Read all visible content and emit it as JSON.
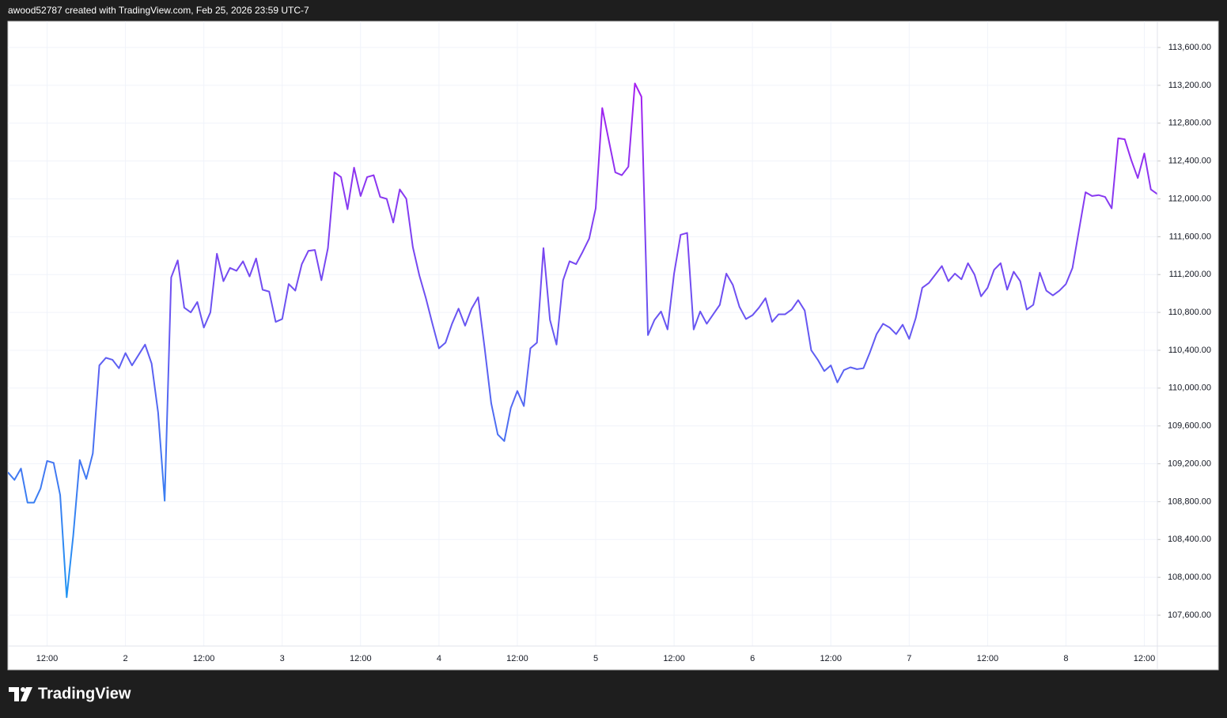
{
  "header": {
    "title": "awood52787 created with TradingView.com, Feb 25, 2026 23:59 UTC-7"
  },
  "footer": {
    "logo": "TradingView"
  },
  "chart_data": {
    "type": "line",
    "x": [
      6,
      7,
      8,
      9,
      10,
      11,
      12,
      13,
      14,
      15,
      16,
      17,
      18,
      19,
      20,
      21,
      22,
      23,
      24,
      25,
      26,
      27,
      28,
      29,
      30,
      31,
      32,
      33,
      34,
      35,
      36,
      37,
      38,
      39,
      40,
      41,
      42,
      43,
      44,
      45,
      46,
      47,
      48,
      49,
      50,
      51,
      52,
      53,
      54,
      55,
      56,
      57,
      58,
      59,
      60,
      61,
      62,
      63,
      64,
      65,
      66,
      67,
      68,
      69,
      70,
      71,
      72,
      73,
      74,
      75,
      76,
      77,
      78,
      79,
      80,
      81,
      82,
      83,
      84,
      85,
      86,
      87,
      88,
      89,
      90,
      91,
      92,
      93,
      94,
      95,
      96,
      97,
      98,
      99,
      100,
      101,
      102,
      103,
      104,
      105,
      106,
      107,
      108,
      109,
      110,
      111,
      112,
      113,
      114,
      115,
      116,
      117,
      118,
      119,
      120,
      121,
      122,
      123,
      124,
      125,
      126,
      127,
      128,
      129,
      130,
      131,
      132,
      133,
      134,
      135,
      136,
      137,
      138,
      139,
      140,
      141,
      142,
      143,
      144,
      145,
      146,
      147,
      148,
      149,
      150,
      151,
      152,
      153,
      154,
      155,
      156,
      157,
      158,
      159,
      160,
      161,
      162,
      163,
      164,
      165,
      166,
      167,
      168,
      169,
      170,
      171,
      172,
      173,
      174,
      175,
      176,
      177,
      178,
      179,
      180,
      181,
      182
    ],
    "series": [
      {
        "gradient": [
          "#a51ff0",
          "#2196f3"
        ],
        "values": [
          109110,
          109030,
          109150,
          108790,
          108790,
          108940,
          109230,
          109210,
          108870,
          107790,
          108440,
          109240,
          109040,
          109310,
          110240,
          110320,
          110300,
          110210,
          110370,
          110240,
          110350,
          110460,
          110260,
          109740,
          108810,
          111170,
          111350,
          110850,
          110800,
          110910,
          110640,
          110800,
          111420,
          111130,
          111270,
          111240,
          111340,
          111180,
          111370,
          111040,
          111020,
          110700,
          110730,
          111100,
          111030,
          111310,
          111450,
          111460,
          111140,
          111480,
          112280,
          112230,
          111890,
          112330,
          112030,
          112230,
          112250,
          112020,
          112000,
          111750,
          112100,
          112000,
          111490,
          111190,
          110950,
          110680,
          110420,
          110480,
          110680,
          110840,
          110660,
          110840,
          110960,
          110420,
          109840,
          109510,
          109440,
          109790,
          109970,
          109810,
          110420,
          110480,
          111480,
          110720,
          110460,
          111140,
          111340,
          111310,
          111440,
          111580,
          111900,
          112960,
          112620,
          112280,
          112250,
          112340,
          113220,
          113080,
          110560,
          110720,
          110810,
          110620,
          111210,
          111620,
          111640,
          110620,
          110810,
          110680,
          110780,
          110880,
          111210,
          111090,
          110860,
          110730,
          110770,
          110850,
          110950,
          110700,
          110780,
          110780,
          110830,
          110930,
          110820,
          110400,
          110300,
          110180,
          110240,
          110060,
          110190,
          110220,
          110200,
          110210,
          110380,
          110570,
          110680,
          110640,
          110570,
          110670,
          110520,
          110740,
          111060,
          111110,
          111200,
          111290,
          111130,
          111210,
          111150,
          111320,
          111200,
          110970,
          111060,
          111250,
          111320,
          111040,
          111230,
          111130,
          110830,
          110880,
          111220,
          111030,
          110980,
          111030,
          111100,
          111270,
          111670,
          112070,
          112030,
          112040,
          112020,
          111900,
          112640,
          112630,
          112410,
          112220,
          112480,
          112100,
          112050
        ]
      }
    ],
    "xlim": [
      6,
      182
    ],
    "xticks": [
      {
        "value": 12,
        "label": "12:00"
      },
      {
        "value": 24,
        "label": "2"
      },
      {
        "value": 36,
        "label": "12:00"
      },
      {
        "value": 48,
        "label": "3"
      },
      {
        "value": 60,
        "label": "12:00"
      },
      {
        "value": 72,
        "label": "4"
      },
      {
        "value": 84,
        "label": "12:00"
      },
      {
        "value": 96,
        "label": "5"
      },
      {
        "value": 108,
        "label": "12:00"
      },
      {
        "value": 120,
        "label": "6"
      },
      {
        "value": 132,
        "label": "12:00"
      },
      {
        "value": 144,
        "label": "7"
      },
      {
        "value": 156,
        "label": "12:00"
      },
      {
        "value": 168,
        "label": "8"
      },
      {
        "value": 180,
        "label": "12:00"
      }
    ],
    "ylim": [
      107274,
      113876
    ],
    "yticks": [
      {
        "value": 107600,
        "label": "107,600.00"
      },
      {
        "value": 108000,
        "label": "108,000.00"
      },
      {
        "value": 108400,
        "label": "108,400.00"
      },
      {
        "value": 108800,
        "label": "108,800.00"
      },
      {
        "value": 109200,
        "label": "109,200.00"
      },
      {
        "value": 109600,
        "label": "109,600.00"
      },
      {
        "value": 110000,
        "label": "110,000.00"
      },
      {
        "value": 110400,
        "label": "110,400.00"
      },
      {
        "value": 110800,
        "label": "110,800.00"
      },
      {
        "value": 111200,
        "label": "111,200.00"
      },
      {
        "value": 111600,
        "label": "111,600.00"
      },
      {
        "value": 112000,
        "label": "112,000.00"
      },
      {
        "value": 112400,
        "label": "112,400.00"
      },
      {
        "value": 112800,
        "label": "112,800.00"
      },
      {
        "value": 113200,
        "label": "113,200.00"
      },
      {
        "value": 113600,
        "label": "113,600.00"
      }
    ],
    "grid": true
  }
}
